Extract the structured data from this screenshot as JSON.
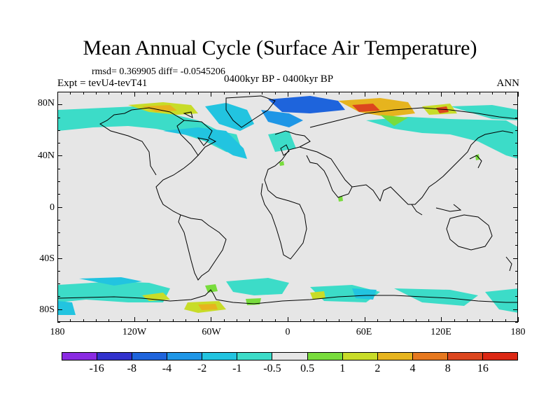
{
  "title": "Mean Annual Cycle (Surface Air Temperature)",
  "stats": "rmsd= 0.369905 diff= -0.0545206",
  "experiment": "Expt = tevU4-tevT41",
  "period": "0400kyr BP - 0400kyr BP",
  "season": "ANN",
  "lat_labels": [
    "80N",
    "40N",
    "0",
    "40S",
    "80S"
  ],
  "lon_labels": [
    "180",
    "120W",
    "60W",
    "0",
    "60E",
    "120E",
    "180"
  ],
  "colorbar": {
    "labels": [
      "-16",
      "-8",
      "-4",
      "-2",
      "-1",
      "-0.5",
      "0.5",
      "1",
      "2",
      "4",
      "8",
      "16"
    ],
    "colors": [
      "#8a2be2",
      "#3232cd",
      "#1e64dc",
      "#1e96e6",
      "#22c4e0",
      "#3cdcc8",
      "#e6e6e6",
      "#78dc3c",
      "#c8dc28",
      "#e6b41e",
      "#e6781e",
      "#dc461e",
      "#dc2814"
    ]
  }
}
